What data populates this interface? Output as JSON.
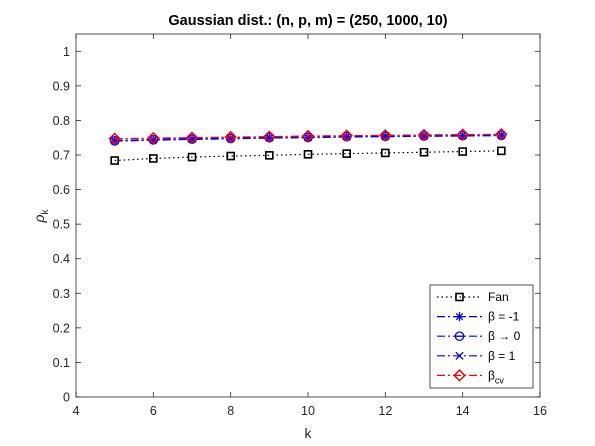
{
  "chart_data": {
    "type": "line",
    "title": "Gaussian dist.: (n, p, m) = (250, 1000, 10)",
    "xlabel": "k",
    "ylabel": {
      "base": "ρ",
      "sub": "k"
    },
    "xlim": [
      4,
      16
    ],
    "ylim": [
      0,
      1.05
    ],
    "xticks": [
      4,
      6,
      8,
      10,
      12,
      14,
      16
    ],
    "yticks": [
      0,
      0.1,
      0.2,
      0.3,
      0.4,
      0.5,
      0.6,
      0.7,
      0.8,
      0.9,
      1
    ],
    "grid": false,
    "legend_position": "bottom-right",
    "x": [
      5,
      6,
      7,
      8,
      9,
      10,
      11,
      12,
      13,
      14,
      15
    ],
    "series": [
      {
        "name": "Fan",
        "name_prefix": "",
        "name_base": "Fan",
        "name_sub": "",
        "color": "#000000",
        "dash": "1.5 3",
        "marker": "square",
        "values": [
          0.684,
          0.69,
          0.694,
          0.697,
          0.699,
          0.702,
          0.704,
          0.706,
          0.708,
          0.71,
          0.712
        ]
      },
      {
        "name": "β = -1",
        "name_prefix": "",
        "name_base": "β = -1",
        "name_sub": "",
        "color": "#0000ff",
        "dash": "8 3 2 3",
        "marker": "asterisk",
        "values": [
          0.74,
          0.743,
          0.745,
          0.747,
          0.749,
          0.75,
          0.752,
          0.753,
          0.754,
          0.755,
          0.756
        ]
      },
      {
        "name": "β → 0",
        "name_prefix": "",
        "name_base": "β → 0",
        "name_sub": "",
        "color": "#0000ff",
        "dash": "8 3 2 3",
        "marker": "circle-line",
        "values": [
          0.741,
          0.744,
          0.746,
          0.748,
          0.75,
          0.751,
          0.753,
          0.754,
          0.755,
          0.756,
          0.757
        ]
      },
      {
        "name": "β = 1",
        "name_prefix": "",
        "name_base": "β = 1",
        "name_sub": "",
        "color": "#0000ff",
        "dash": "8 3 2 3",
        "marker": "x",
        "values": [
          0.742,
          0.745,
          0.747,
          0.749,
          0.751,
          0.752,
          0.754,
          0.755,
          0.756,
          0.757,
          0.758
        ]
      },
      {
        "name": "βcv",
        "name_prefix": "",
        "name_base": "β",
        "name_sub": "cv",
        "color": "#ff0000",
        "dash": "8 3 2 3",
        "marker": "diamond",
        "values": [
          0.747,
          0.749,
          0.75,
          0.752,
          0.753,
          0.755,
          0.756,
          0.757,
          0.758,
          0.759,
          0.76
        ]
      }
    ]
  }
}
